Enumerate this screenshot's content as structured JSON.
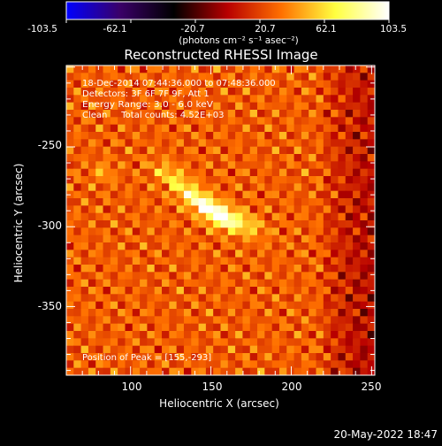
{
  "colorbar": {
    "ticks": [
      "-103.5",
      "-62.1",
      "-20.7",
      "20.7",
      "62.1",
      "103.5"
    ],
    "unit_label": "(photons cm⁻² s⁻¹ asec⁻²)"
  },
  "chart_data": {
    "type": "heatmap",
    "title": "Reconstructed RHESSI Image",
    "xlabel": "Heliocentric X (arcsec)",
    "ylabel": "Heliocentric Y (arcsec)",
    "xlim": [
      60,
      252
    ],
    "ylim": [
      -393,
      -199
    ],
    "x_ticks": [
      "100",
      "150",
      "200",
      "250"
    ],
    "y_ticks": [
      "-250",
      "-300",
      "-350"
    ],
    "colormap": [
      "#0000ff",
      "#3a0068",
      "#000000",
      "#b80000",
      "#ff7000",
      "#ffff40",
      "#ffffff"
    ],
    "value_range": [
      -103.5,
      103.5
    ],
    "annotations": [
      "18-Dec-2014 07:44:36.000 to 07:48:36.000",
      "Detectors: 3F 6F 7F 9F, Att 1",
      "Energy Range: 3.0 - 6.0 keV",
      "Clean     Total counts: 4.52E+03"
    ],
    "peak_label": "Position of Peak = [155,-293]",
    "peak": {
      "x": 155,
      "y": -293,
      "value": 103.5
    },
    "sources": [
      {
        "x": 155,
        "y": -293,
        "value": 103.5
      },
      {
        "x": 140,
        "y": -282,
        "value": 75
      },
      {
        "x": 125,
        "y": -268,
        "value": 55
      },
      {
        "x": 172,
        "y": -298,
        "value": 55
      },
      {
        "x": 83,
        "y": -266,
        "value": 45
      }
    ]
  },
  "footer_date": "20-May-2022 18:47"
}
